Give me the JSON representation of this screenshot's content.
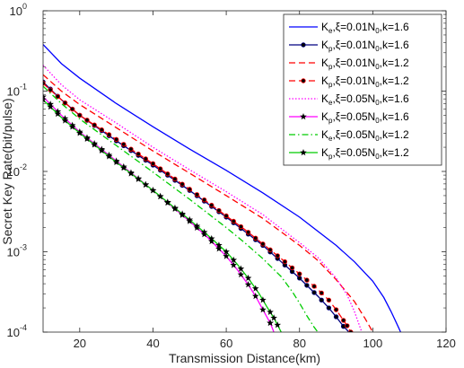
{
  "chart_data": {
    "type": "line",
    "xlabel": "Transmission Distance(km)",
    "ylabel": "Secret Key Rate(bit/pulse)",
    "xlim": [
      10,
      120
    ],
    "ylim": [
      0.0001,
      1
    ],
    "yscale": "log",
    "grid": false,
    "legend_position": "top-right",
    "x_ticks": [
      "20",
      "40",
      "60",
      "80",
      "100",
      "120"
    ],
    "y_ticks": [
      {
        "base": "10",
        "exp": "0"
      },
      {
        "base": "10",
        "exp": "-1"
      },
      {
        "base": "10",
        "exp": "-2"
      },
      {
        "base": "10",
        "exp": "-3"
      },
      {
        "base": "10",
        "exp": "-4"
      }
    ],
    "series": [
      {
        "name": "Ke,ξ=0.01N0,k=1.6",
        "label": {
          "sym": "K",
          "sub1": "e",
          "mid": ",ξ=0.01N",
          "sub2": "0",
          "tail": ",k=1.6"
        },
        "color": "#0000ff",
        "dash": "",
        "marker": "none",
        "points": [
          [
            10,
            0.38
          ],
          [
            15,
            0.22
          ],
          [
            20,
            0.145
          ],
          [
            30,
            0.07
          ],
          [
            40,
            0.036
          ],
          [
            50,
            0.019
          ],
          [
            60,
            0.0103
          ],
          [
            70,
            0.0054
          ],
          [
            80,
            0.0027
          ],
          [
            90,
            0.0012
          ],
          [
            95,
            0.00075
          ],
          [
            100,
            0.00043
          ],
          [
            103,
            0.00027
          ],
          [
            105,
            0.00018
          ],
          [
            107,
            0.000115
          ],
          [
            107.6,
            0.0001
          ]
        ]
      },
      {
        "name": "Kp,ξ=0.01N0,k=1.6",
        "label": {
          "sym": "K",
          "sub1": "p",
          "mid": ",ξ=0.01N",
          "sub2": "0",
          "tail": ",k=1.6"
        },
        "color": "#000080",
        "dash": "",
        "marker": "circle",
        "points": [
          [
            10,
            0.13
          ],
          [
            15,
            0.078
          ],
          [
            20,
            0.05
          ],
          [
            30,
            0.024
          ],
          [
            40,
            0.012
          ],
          [
            50,
            0.0058
          ],
          [
            60,
            0.0027
          ],
          [
            65,
            0.0018
          ],
          [
            70,
            0.0012
          ],
          [
            75,
            0.00075
          ],
          [
            80,
            0.00047
          ],
          [
            85,
            0.00028
          ],
          [
            88,
            0.0002
          ],
          [
            90,
            0.000155
          ],
          [
            92,
            0.000118
          ],
          [
            93.5,
            0.0001
          ]
        ]
      },
      {
        "name": "Kp,ξ=0.01N0,k=1.2",
        "label": {
          "sym": "K",
          "sub1": "p",
          "mid": ",ξ=0.01N",
          "sub2": "0",
          "tail": ",k=1.2"
        },
        "color": "#ff0000",
        "dash": "7,4",
        "marker": "none",
        "points": [
          [
            10,
            0.16
          ],
          [
            15,
            0.1
          ],
          [
            20,
            0.068
          ],
          [
            30,
            0.035
          ],
          [
            40,
            0.018
          ],
          [
            50,
            0.0095
          ],
          [
            60,
            0.005
          ],
          [
            70,
            0.0026
          ],
          [
            80,
            0.0012
          ],
          [
            85,
            0.00078
          ],
          [
            90,
            0.00045
          ],
          [
            95,
            0.00024
          ],
          [
            98,
            0.000145
          ],
          [
            100,
            0.0001
          ]
        ]
      },
      {
        "name": "Kp,ξ=0.01N0,k=1.2",
        "label": {
          "sym": "K",
          "sub1": "p",
          "mid": ",ξ=0.01N",
          "sub2": "0",
          "tail": ",k=1.2"
        },
        "color": "#ff0000",
        "dash": "7,4",
        "marker": "circle",
        "points": [
          [
            10,
            0.125
          ],
          [
            15,
            0.078
          ],
          [
            20,
            0.05
          ],
          [
            30,
            0.025
          ],
          [
            40,
            0.0125
          ],
          [
            50,
            0.006
          ],
          [
            60,
            0.0028
          ],
          [
            65,
            0.0019
          ],
          [
            70,
            0.00125
          ],
          [
            75,
            0.00082
          ],
          [
            80,
            0.00053
          ],
          [
            85,
            0.00034
          ],
          [
            88,
            0.00025
          ],
          [
            90,
            0.00019
          ],
          [
            93,
            0.00012
          ],
          [
            94,
            0.0001
          ]
        ]
      },
      {
        "name": "Ke,ξ=0.05N0,k=1.6",
        "label": {
          "sym": "K",
          "sub1": "e",
          "mid": ",ξ=0.05N",
          "sub2": "0",
          "tail": ",k=1.6"
        },
        "color": "#ff00ff",
        "dash": "1.5,2",
        "marker": "none",
        "points": [
          [
            10,
            0.21
          ],
          [
            15,
            0.12
          ],
          [
            20,
            0.078
          ],
          [
            30,
            0.04
          ],
          [
            40,
            0.02
          ],
          [
            50,
            0.0105
          ],
          [
            60,
            0.0056
          ],
          [
            70,
            0.0029
          ],
          [
            80,
            0.0013
          ],
          [
            85,
            0.00085
          ],
          [
            90,
            0.00047
          ],
          [
            93,
            0.00029
          ],
          [
            95,
            0.00018
          ],
          [
            97,
            0.0001
          ]
        ]
      },
      {
        "name": "Kp,ξ=0.05N0,k=1.6",
        "label": {
          "sym": "K",
          "sub1": "p",
          "mid": ",ξ=0.05N",
          "sub2": "0",
          "tail": ",k=1.6"
        },
        "color": "#ff00ff",
        "dash": "",
        "marker": "star",
        "points": [
          [
            10,
            0.085
          ],
          [
            15,
            0.05
          ],
          [
            20,
            0.031
          ],
          [
            30,
            0.0135
          ],
          [
            40,
            0.0058
          ],
          [
            50,
            0.0024
          ],
          [
            55,
            0.0015
          ],
          [
            60,
            0.00088
          ],
          [
            63,
            0.0006
          ],
          [
            66,
            0.00039
          ],
          [
            68,
            0.00028
          ],
          [
            70,
            0.00019
          ],
          [
            72,
            0.00013
          ],
          [
            73,
            0.0001
          ]
        ]
      },
      {
        "name": "Ke,ξ=0.05N0,k=1.2",
        "label": {
          "sym": "K",
          "sub1": "e",
          "mid": ",ξ=0.05N",
          "sub2": "0",
          "tail": ",k=1.2"
        },
        "color": "#00cc00",
        "dash": "7,3,1.5,3",
        "marker": "none",
        "points": [
          [
            10,
            0.115
          ],
          [
            15,
            0.07
          ],
          [
            20,
            0.045
          ],
          [
            30,
            0.021
          ],
          [
            40,
            0.0098
          ],
          [
            50,
            0.0045
          ],
          [
            60,
            0.002
          ],
          [
            65,
            0.0013
          ],
          [
            70,
            0.00082
          ],
          [
            75,
            0.00049
          ],
          [
            78,
            0.00032
          ],
          [
            80,
            0.00023
          ],
          [
            82,
            0.00016
          ],
          [
            84,
            0.000115
          ],
          [
            85,
            0.0001
          ]
        ]
      },
      {
        "name": "Kp,ξ=0.05N0,k=1.2",
        "label": {
          "sym": "K",
          "sub1": "p",
          "mid": ",ξ=0.05N",
          "sub2": "0",
          "tail": ",k=1.2"
        },
        "color": "#00cc00",
        "dash": "",
        "marker": "star",
        "points": [
          [
            10,
            0.078
          ],
          [
            15,
            0.047
          ],
          [
            20,
            0.03
          ],
          [
            30,
            0.013
          ],
          [
            40,
            0.0058
          ],
          [
            50,
            0.0025
          ],
          [
            55,
            0.0016
          ],
          [
            60,
            0.001
          ],
          [
            63,
            0.0007
          ],
          [
            66,
            0.00047
          ],
          [
            69,
            0.0003
          ],
          [
            71,
            0.00021
          ],
          [
            73,
            0.00015
          ],
          [
            75,
            0.0001
          ]
        ]
      }
    ]
  }
}
